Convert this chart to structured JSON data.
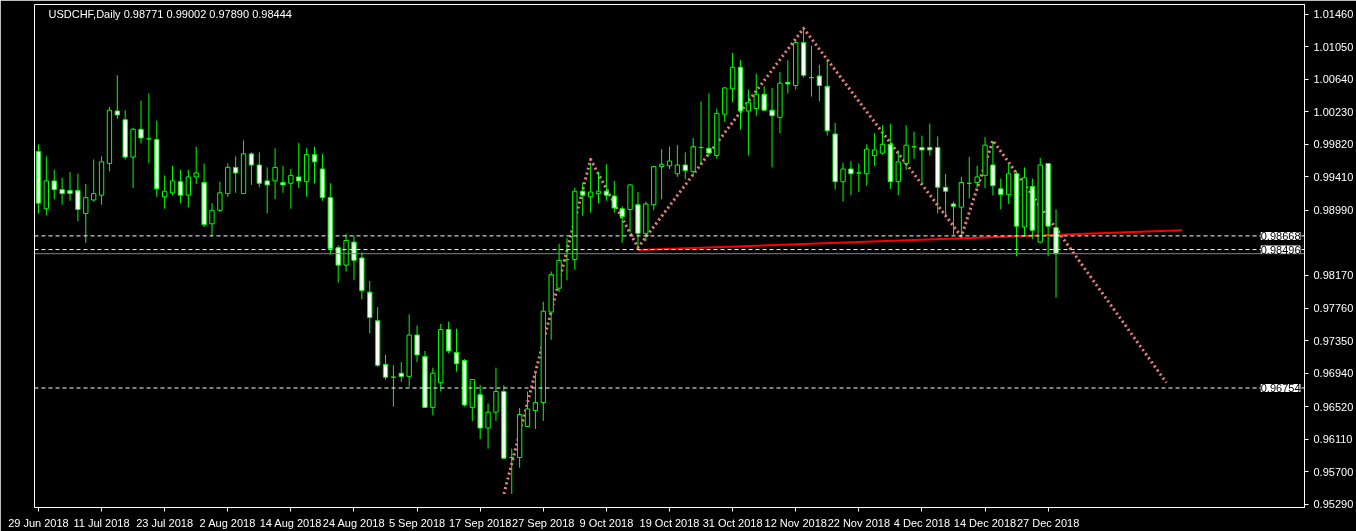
{
  "chart_data": {
    "type": "candlestick",
    "title": "USDCHF,Daily  0.98771 0.99002 0.97890 0.98444",
    "color": "#00ff00",
    "grid": false,
    "categories": [
      "29 Jun 2018",
      null,
      null,
      null,
      null,
      null,
      null,
      null,
      "11 Jul 2018",
      null,
      null,
      null,
      null,
      null,
      null,
      null,
      "23 Jul 2018",
      null,
      null,
      null,
      null,
      null,
      null,
      null,
      "2 Aug 2018",
      null,
      null,
      null,
      null,
      null,
      null,
      null,
      "14 Aug 2018",
      null,
      null,
      null,
      null,
      null,
      null,
      null,
      "24 Aug 2018",
      null,
      null,
      null,
      null,
      null,
      null,
      null,
      "5 Sep 2018",
      null,
      null,
      null,
      null,
      null,
      null,
      null,
      "17 Sep 2018",
      null,
      null,
      null,
      null,
      null,
      null,
      null,
      "27 Sep 2018",
      null,
      null,
      null,
      null,
      null,
      null,
      null,
      "9 Oct 2018",
      null,
      null,
      null,
      null,
      null,
      null,
      null,
      "19 Oct 2018",
      null,
      null,
      null,
      null,
      null,
      null,
      null,
      "31 Oct 2018",
      null,
      null,
      null,
      null,
      null,
      null,
      null,
      "12 Nov 2018",
      null,
      null,
      null,
      null,
      null,
      null,
      null,
      "22 Nov 2018",
      null,
      null,
      null,
      null,
      null,
      null,
      null,
      "4 Dec 2018",
      null,
      null,
      null,
      null,
      null,
      null,
      null,
      "14 Dec 2018",
      null,
      null,
      null,
      null,
      null,
      null,
      null,
      "27 Dec 2018",
      null,
      null,
      null,
      null,
      null,
      null,
      null,
      null,
      null,
      null,
      null,
      null,
      null,
      null,
      null,
      null,
      null,
      null,
      null,
      null,
      null,
      null,
      null,
      null,
      null,
      null,
      null,
      null,
      null,
      null,
      null,
      null
    ],
    "ohlc": [
      [
        0.9973,
        0.9982,
        0.9895,
        0.9908
      ],
      [
        0.9901,
        0.9967,
        0.9893,
        0.9936
      ],
      [
        0.9936,
        0.995,
        0.9913,
        0.9925
      ],
      [
        0.9925,
        0.994,
        0.9906,
        0.992
      ],
      [
        0.9924,
        0.9947,
        0.9911,
        0.992
      ],
      [
        0.9924,
        0.9945,
        0.9885,
        0.99
      ],
      [
        0.9895,
        0.9932,
        0.9858,
        0.9915
      ],
      [
        0.9912,
        0.9963,
        0.991,
        0.992
      ],
      [
        0.9918,
        0.9967,
        0.9906,
        0.996
      ],
      [
        0.9958,
        1.0029,
        0.9948,
        1.0025
      ],
      [
        1.0024,
        1.0069,
        1.0014,
        1.0019
      ],
      [
        1.0013,
        1.0025,
        0.9963,
        0.9966
      ],
      [
        0.9966,
        1.0003,
        0.9927,
        1.0001
      ],
      [
        1.0001,
        1.0037,
        0.9983,
        0.999
      ],
      [
        0.9989,
        1.0046,
        0.9958,
        0.9989
      ],
      [
        0.9988,
        1.0012,
        0.9916,
        0.9926
      ],
      [
        0.9916,
        0.9943,
        0.9901,
        0.9923
      ],
      [
        0.9921,
        0.9955,
        0.9918,
        0.9936
      ],
      [
        0.9935,
        0.995,
        0.9908,
        0.9918
      ],
      [
        0.9918,
        0.995,
        0.9903,
        0.9941
      ],
      [
        0.9941,
        0.9979,
        0.9932,
        0.9946
      ],
      [
        0.9934,
        0.9958,
        0.9878,
        0.9881
      ],
      [
        0.9882,
        0.9908,
        0.9867,
        0.9899
      ],
      [
        0.9899,
        0.9935,
        0.9897,
        0.9921
      ],
      [
        0.992,
        0.9958,
        0.9916,
        0.9953
      ],
      [
        0.9953,
        0.9967,
        0.9921,
        0.9946
      ],
      [
        0.992,
        0.9987,
        0.992,
        0.997
      ],
      [
        0.997,
        0.9972,
        0.9931,
        0.9956
      ],
      [
        0.9956,
        0.9972,
        0.9928,
        0.9933
      ],
      [
        0.9936,
        0.9953,
        0.9895,
        0.9931
      ],
      [
        0.9936,
        0.9977,
        0.9913,
        0.9953
      ],
      [
        0.9934,
        0.9955,
        0.9921,
        0.9931
      ],
      [
        0.9933,
        0.9951,
        0.9901,
        0.9943
      ],
      [
        0.9941,
        0.9984,
        0.9927,
        0.9936
      ],
      [
        0.9935,
        0.9977,
        0.9916,
        0.9969
      ],
      [
        0.9969,
        0.9979,
        0.9933,
        0.996
      ],
      [
        0.9951,
        0.997,
        0.9911,
        0.9915
      ],
      [
        0.9915,
        0.9933,
        0.9843,
        0.9851
      ],
      [
        0.9852,
        0.9855,
        0.9808,
        0.983
      ],
      [
        0.983,
        0.9869,
        0.9822,
        0.9861
      ],
      [
        0.9859,
        0.9867,
        0.9811,
        0.9836
      ],
      [
        0.9839,
        0.9846,
        0.9787,
        0.9798
      ],
      [
        0.9796,
        0.981,
        0.9744,
        0.9764
      ],
      [
        0.976,
        0.9777,
        0.9702,
        0.9704
      ],
      [
        0.9705,
        0.9717,
        0.9686,
        0.9689
      ],
      [
        0.9689,
        0.9704,
        0.9652,
        0.9689
      ],
      [
        0.9694,
        0.9708,
        0.9683,
        0.969
      ],
      [
        0.969,
        0.9768,
        0.9677,
        0.9742
      ],
      [
        0.9742,
        0.9754,
        0.9708,
        0.9717
      ],
      [
        0.9715,
        0.9722,
        0.9651,
        0.9651
      ],
      [
        0.9651,
        0.9701,
        0.9641,
        0.9694
      ],
      [
        0.9682,
        0.9756,
        0.9671,
        0.9749
      ],
      [
        0.9749,
        0.9759,
        0.9719,
        0.9722
      ],
      [
        0.972,
        0.975,
        0.9696,
        0.9706
      ],
      [
        0.971,
        0.9712,
        0.9652,
        0.9654
      ],
      [
        0.9651,
        0.9686,
        0.9634,
        0.9686
      ],
      [
        0.9667,
        0.9679,
        0.9611,
        0.9625
      ],
      [
        0.9625,
        0.9656,
        0.9599,
        0.9645
      ],
      [
        0.9645,
        0.9701,
        0.9634,
        0.9671
      ],
      [
        0.9671,
        0.9679,
        0.9587,
        0.9587
      ],
      [
        0.9588,
        0.9599,
        0.9542,
        0.9588
      ],
      [
        0.9588,
        0.965,
        0.9575,
        0.9642
      ],
      [
        0.9627,
        0.9671,
        0.9627,
        0.9649
      ],
      [
        0.9647,
        0.9695,
        0.9624,
        0.9657
      ],
      [
        0.9657,
        0.9784,
        0.9634,
        0.9772
      ],
      [
        0.9771,
        0.9822,
        0.9736,
        0.9818
      ],
      [
        0.9801,
        0.9857,
        0.9796,
        0.9836
      ],
      [
        0.9837,
        0.9864,
        0.9811,
        0.9837
      ],
      [
        0.9837,
        0.9927,
        0.9824,
        0.9923
      ],
      [
        0.9923,
        0.9934,
        0.9892,
        0.9918
      ],
      [
        0.9916,
        0.9957,
        0.9896,
        0.9922
      ],
      [
        0.992,
        0.9947,
        0.9908,
        0.9923
      ],
      [
        0.9923,
        0.9957,
        0.9911,
        0.9918
      ],
      [
        0.9917,
        0.9936,
        0.9896,
        0.9902
      ],
      [
        0.9901,
        0.9904,
        0.9858,
        0.9891
      ],
      [
        0.99,
        0.9931,
        0.9871,
        0.9931
      ],
      [
        0.9906,
        0.9922,
        0.9853,
        0.987
      ],
      [
        0.987,
        0.991,
        0.986,
        0.9907
      ],
      [
        0.9906,
        0.9955,
        0.9899,
        0.9954
      ],
      [
        0.9954,
        0.9976,
        0.9913,
        0.9957
      ],
      [
        0.9955,
        0.9979,
        0.9951,
        0.9961
      ],
      [
        0.9945,
        0.9981,
        0.9941,
        0.9956
      ],
      [
        0.9956,
        0.9972,
        0.9938,
        0.9949
      ],
      [
        0.9948,
        0.999,
        0.9943,
        0.9979
      ],
      [
        0.9978,
        1.0036,
        0.9956,
        0.9978
      ],
      [
        0.9977,
        1.0046,
        0.9967,
        0.9971
      ],
      [
        0.9968,
        1.0027,
        0.9964,
        1.0021
      ],
      [
        1.002,
        1.0054,
        1.001,
        1.0053
      ],
      [
        1.0052,
        1.0097,
        1.0035,
        1.0079
      ],
      [
        1.0079,
        1.0088,
        1.0001,
        1.0024
      ],
      [
        1.0024,
        1.0051,
        0.9968,
        1.0035
      ],
      [
        1.0027,
        1.0071,
        1.0018,
        1.0045
      ],
      [
        1.0045,
        1.0055,
        1.0024,
        1.0025
      ],
      [
        1.0025,
        1.0053,
        0.9953,
        1.0018
      ],
      [
        1.0016,
        1.0073,
        0.9996,
        1.0059
      ],
      [
        1.006,
        1.0088,
        1.0046,
        1.0058
      ],
      [
        1.0056,
        1.0113,
        1.0051,
        1.011
      ],
      [
        1.011,
        1.013,
        1.0066,
        1.0069
      ],
      [
        1.0066,
        1.0106,
        1.0042,
        1.0066
      ],
      [
        1.0068,
        1.0082,
        1.0036,
        1.0056
      ],
      [
        1.0055,
        1.0089,
        0.9993,
        0.9999
      ],
      [
        0.9995,
        1.0009,
        0.9925,
        0.9935
      ],
      [
        0.9935,
        0.9959,
        0.991,
        0.9951
      ],
      [
        0.9951,
        0.9961,
        0.9918,
        0.9945
      ],
      [
        0.9946,
        0.9958,
        0.9922,
        0.9946
      ],
      [
        0.9945,
        0.9982,
        0.993,
        0.9976
      ],
      [
        0.9968,
        0.9996,
        0.9955,
        0.9975
      ],
      [
        0.9971,
        1.0006,
        0.9969,
        0.9982
      ],
      [
        0.9982,
        1.0008,
        0.9926,
        0.9935
      ],
      [
        0.9935,
        0.9974,
        0.9918,
        0.996
      ],
      [
        0.9958,
        1.0006,
        0.995,
        0.9981
      ],
      [
        0.9979,
        0.9998,
        0.9964,
        0.9979
      ],
      [
        0.9978,
        0.9993,
        0.9931,
        0.9975
      ],
      [
        0.9978,
        1.0008,
        0.9968,
        0.9975
      ],
      [
        0.9978,
        0.9992,
        0.9895,
        0.9928
      ],
      [
        0.9928,
        0.9945,
        0.9893,
        0.9923
      ],
      [
        0.9907,
        0.991,
        0.9868,
        0.9904
      ],
      [
        0.9903,
        0.9941,
        0.9866,
        0.9934
      ],
      [
        0.9933,
        0.9966,
        0.9914,
        0.9933
      ],
      [
        0.9934,
        0.9955,
        0.9927,
        0.9941
      ],
      [
        0.9943,
        0.9991,
        0.9927,
        0.9981
      ],
      [
        0.9956,
        0.9986,
        0.9918,
        0.993
      ],
      [
        0.9926,
        0.9939,
        0.99,
        0.9919
      ],
      [
        0.9919,
        0.9958,
        0.9907,
        0.9945
      ],
      [
        0.9945,
        0.9948,
        0.9841,
        0.9879
      ],
      [
        0.9878,
        0.9953,
        0.9866,
        0.994
      ],
      [
        0.9929,
        0.9939,
        0.9863,
        0.9874
      ],
      [
        0.9859,
        0.9965,
        0.9858,
        0.9956
      ],
      [
        0.9958,
        0.9958,
        0.9841,
        0.9879
      ],
      [
        0.98771,
        0.99002,
        0.9789,
        0.98444
      ],
      null,
      null,
      null,
      null,
      null,
      null,
      null,
      null,
      null,
      null,
      null,
      null,
      null,
      null,
      null,
      null,
      null,
      null,
      null,
      null,
      null,
      null,
      null,
      null,
      null,
      null,
      null,
      null,
      null,
      null,
      null
    ],
    "series": [
      {
        "type": "line",
        "color": "#f08080",
        "line_style": "dotted",
        "values": [
          null,
          null,
          null,
          null,
          null,
          null,
          null,
          null,
          null,
          null,
          null,
          null,
          null,
          null,
          null,
          null,
          null,
          null,
          null,
          null,
          null,
          null,
          null,
          null,
          null,
          null,
          null,
          null,
          null,
          null,
          null,
          null,
          null,
          null,
          null,
          null,
          null,
          null,
          null,
          null,
          null,
          null,
          null,
          null,
          null,
          null,
          null,
          null,
          null,
          null,
          null,
          null,
          null,
          null,
          null,
          null,
          null,
          null,
          null,
          0.9542,
          null,
          null,
          null,
          null,
          null,
          null,
          null,
          null,
          null,
          null,
          0.9963,
          null,
          null,
          null,
          null,
          null,
          0.9852,
          null,
          null,
          null,
          null,
          null,
          null,
          null,
          null,
          null,
          null,
          null,
          null,
          null,
          null,
          null,
          null,
          null,
          null,
          null,
          null,
          1.0128,
          null,
          null,
          null,
          null,
          null,
          null,
          null,
          null,
          null,
          null,
          null,
          null,
          null,
          null,
          null,
          null,
          null,
          null,
          null,
          0.9866,
          null,
          null,
          null,
          0.9987,
          null,
          null,
          null,
          null,
          null,
          null,
          null,
          null,
          null,
          null,
          null,
          null,
          null,
          null,
          null,
          null,
          null,
          null,
          null,
          null,
          null,
          0.9682,
          null,
          null,
          null,
          null,
          null,
          null,
          null,
          null,
          null,
          null,
          null,
          null,
          null,
          null,
          null,
          null,
          null
        ]
      },
      {
        "type": "line",
        "color": "#ff0000",
        "line_style": "solid",
        "values": [
          null,
          null,
          null,
          null,
          null,
          null,
          null,
          null,
          null,
          null,
          null,
          null,
          null,
          null,
          null,
          null,
          null,
          null,
          null,
          null,
          null,
          null,
          null,
          null,
          null,
          null,
          null,
          null,
          null,
          null,
          null,
          null,
          null,
          null,
          null,
          null,
          null,
          null,
          null,
          null,
          null,
          null,
          null,
          null,
          null,
          null,
          null,
          null,
          null,
          null,
          null,
          null,
          null,
          null,
          null,
          null,
          null,
          null,
          null,
          null,
          null,
          null,
          null,
          null,
          null,
          null,
          null,
          null,
          null,
          null,
          null,
          null,
          null,
          null,
          null,
          null,
          0.9849,
          null,
          null,
          null,
          null,
          null,
          null,
          null,
          null,
          null,
          null,
          null,
          null,
          null,
          null,
          null,
          null,
          null,
          null,
          null,
          null,
          null,
          null,
          null,
          null,
          null,
          null,
          null,
          null,
          null,
          null,
          null,
          null,
          null,
          null,
          null,
          null,
          null,
          null,
          null,
          null,
          null,
          null,
          null,
          null,
          null,
          null,
          null,
          null,
          null,
          null,
          null,
          null,
          null,
          null,
          null,
          null,
          null,
          null,
          null,
          null,
          null,
          null,
          null,
          null,
          null,
          null,
          null,
          null,
          0.9874,
          null,
          null,
          null,
          null,
          null,
          null,
          null,
          null,
          null,
          null,
          null,
          null,
          null,
          null,
          null
        ]
      }
    ],
    "ref_lines": [
      {
        "axis": "y",
        "value": 0.98668,
        "label": "0.98668",
        "color": "#ffffff",
        "line_style": "dashed"
      },
      {
        "axis": "y",
        "value": 0.98496,
        "label": "0.98496",
        "color": "#ffffff",
        "line_style": "dashed"
      },
      {
        "axis": "y",
        "value": 0.98444,
        "label": null,
        "color": "#778899",
        "line_style": "solid"
      },
      {
        "axis": "y",
        "value": 0.96754,
        "label": "0.96754",
        "color": "#ffffff",
        "line_style": "dashed"
      }
    ],
    "ylim": [
      0.9525,
      1.0158
    ],
    "yticks": [
      {
        "value": 1.0146,
        "label": "1.01460"
      },
      {
        "value": 1.0105,
        "label": "1.01050"
      },
      {
        "value": 1.0064,
        "label": "1.00640"
      },
      {
        "value": 1.0023,
        "label": "1.00230"
      },
      {
        "value": 0.9982,
        "label": "0.99820"
      },
      {
        "value": 0.9941,
        "label": "0.99410"
      },
      {
        "value": 0.9899,
        "label": "0.98990"
      },
      {
        "value": 0.9817,
        "label": "0.98170"
      },
      {
        "value": 0.9776,
        "label": "0.97760"
      },
      {
        "value": 0.9735,
        "label": "0.97350"
      },
      {
        "value": 0.9694,
        "label": "0.96940"
      },
      {
        "value": 0.9652,
        "label": "0.96520"
      },
      {
        "value": 0.9611,
        "label": "0.96110"
      },
      {
        "value": 0.957,
        "label": "0.95700"
      },
      {
        "value": 0.9529,
        "label": "0.95290"
      }
    ]
  }
}
